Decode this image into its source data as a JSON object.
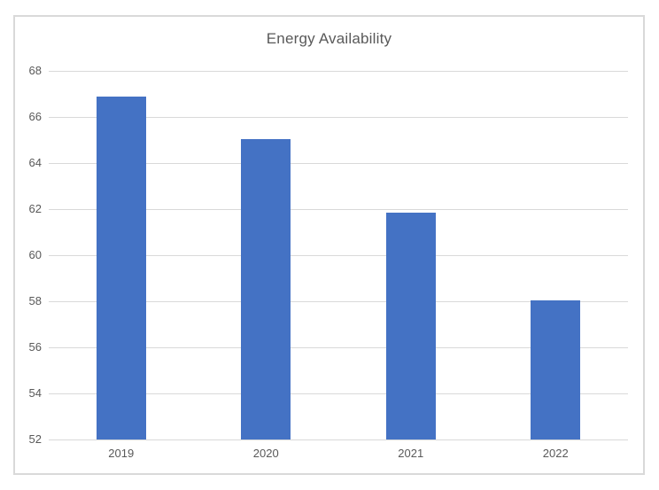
{
  "chart_data": {
    "type": "bar",
    "title": "Energy Availability",
    "categories": [
      "2019",
      "2020",
      "2021",
      "2022"
    ],
    "values": [
      66.9,
      65.05,
      61.85,
      58.05
    ],
    "xlabel": "",
    "ylabel": "",
    "ylim": [
      52,
      68
    ],
    "ytick_step": 2,
    "grid": true,
    "legend": false,
    "colors": {
      "bar": "#4472C4",
      "gridline": "#D9D9D9",
      "axis_line": "#D9D9D9",
      "text": "#595959",
      "border": "#D9D9D9",
      "background": "#FFFFFF"
    }
  }
}
